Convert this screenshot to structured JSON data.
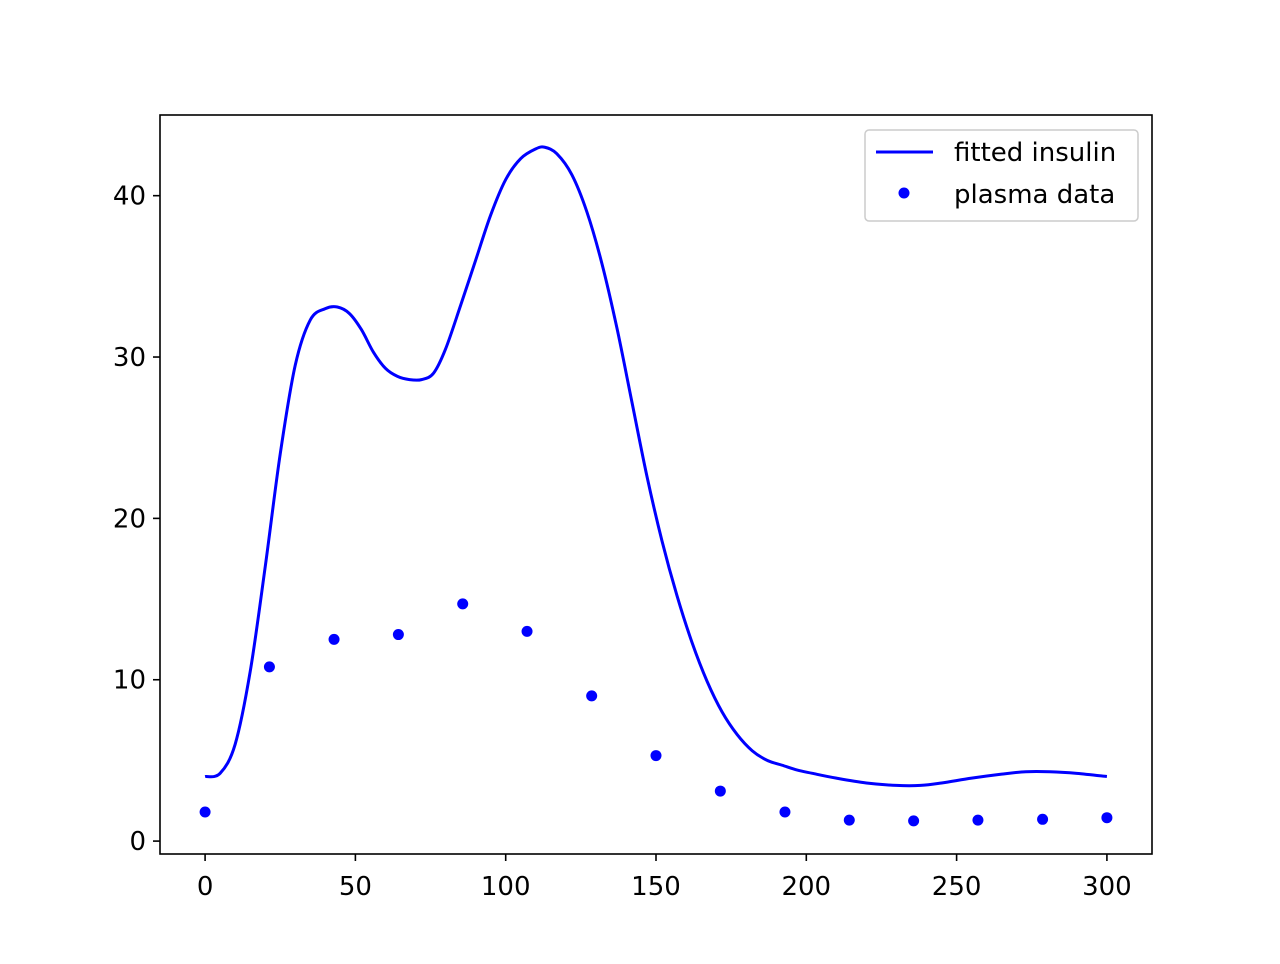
{
  "chart_data": {
    "type": "line",
    "title": "",
    "xlabel": "",
    "ylabel": "",
    "xlim": [
      -15,
      315
    ],
    "ylim": [
      -0.8,
      45.0
    ],
    "grid": false,
    "legend_position": "top-right",
    "x_ticks": [
      0,
      50,
      100,
      150,
      200,
      250,
      300
    ],
    "x_tick_labels": [
      "0",
      "50",
      "100",
      "150",
      "200",
      "250",
      "300"
    ],
    "y_ticks": [
      0,
      10,
      20,
      30,
      40
    ],
    "y_tick_labels": [
      "0",
      "10",
      "20",
      "30",
      "40"
    ],
    "series": [
      {
        "name": "fitted insulin",
        "kind": "line",
        "color": "#0000ff",
        "x": [
          0,
          5,
          10,
          15,
          20,
          25,
          30,
          35,
          40,
          44,
          48,
          52,
          56,
          60,
          64,
          68,
          72,
          76,
          80,
          85,
          90,
          95,
          100,
          105,
          110,
          113,
          117,
          122,
          127,
          132,
          137,
          142,
          147,
          152,
          157,
          162,
          167,
          172,
          177,
          182,
          187,
          192,
          197,
          202,
          210,
          220,
          230,
          238,
          245,
          255,
          265,
          273,
          281,
          290,
          300
        ],
        "y": [
          4.0,
          4.2,
          6.0,
          10.5,
          17.0,
          24.0,
          29.5,
          32.3,
          33.0,
          33.1,
          32.7,
          31.7,
          30.3,
          29.3,
          28.8,
          28.6,
          28.6,
          29.0,
          30.5,
          33.2,
          36.0,
          38.8,
          41.0,
          42.3,
          42.9,
          43.0,
          42.6,
          41.3,
          39.0,
          35.8,
          31.8,
          27.2,
          22.6,
          18.6,
          15.2,
          12.3,
          9.9,
          8.0,
          6.6,
          5.6,
          5.0,
          4.7,
          4.4,
          4.2,
          3.9,
          3.6,
          3.45,
          3.45,
          3.6,
          3.9,
          4.15,
          4.3,
          4.3,
          4.2,
          4.0
        ]
      },
      {
        "name": "plasma data",
        "kind": "scatter",
        "color": "#0000ff",
        "x": [
          0,
          21.4,
          42.9,
          64.3,
          85.7,
          107.1,
          128.6,
          150,
          171.4,
          192.9,
          214.3,
          235.7,
          257.1,
          278.6,
          300
        ],
        "y": [
          1.8,
          10.8,
          12.5,
          12.8,
          14.7,
          13.0,
          9.0,
          5.3,
          3.1,
          1.8,
          1.3,
          1.25,
          1.3,
          1.35,
          1.45
        ]
      }
    ]
  }
}
